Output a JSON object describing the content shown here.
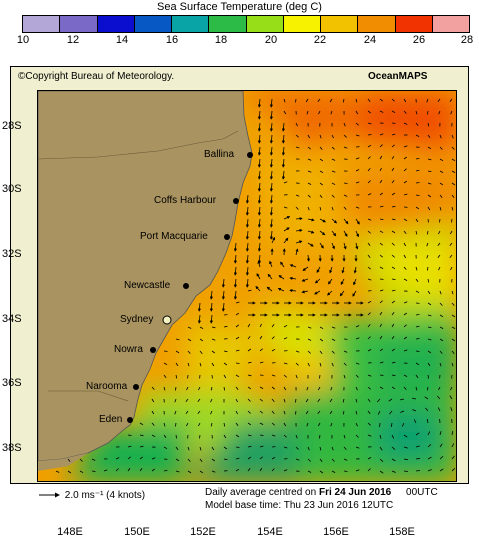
{
  "colorbar": {
    "title": "Sea Surface Temperature (deg C)",
    "ticks": [
      "10",
      "12",
      "14",
      "16",
      "18",
      "20",
      "22",
      "24",
      "26",
      "28"
    ],
    "colors": [
      "#b3a7d8",
      "#7a69c6",
      "#0b0ecf",
      "#0757c4",
      "#08a4a6",
      "#2dbb47",
      "#97de18",
      "#f7f200",
      "#f2c200",
      "#f08d00",
      "#f03300",
      "#f2a0a0"
    ]
  },
  "header": {
    "copyright": "©Copyright Bureau of Meteorology.",
    "brand": "OceanMAPS"
  },
  "axes": {
    "lat_labels": [
      "28S",
      "30S",
      "32S",
      "34S",
      "36S",
      "38S"
    ],
    "lon_labels": [
      "148E",
      "150E",
      "152E",
      "154E",
      "156E",
      "158E"
    ]
  },
  "places": [
    {
      "name": "Ballina"
    },
    {
      "name": "Coffs Harbour"
    },
    {
      "name": "Port Macquarie"
    },
    {
      "name": "Newcastle"
    },
    {
      "name": "Sydney"
    },
    {
      "name": "Nowra"
    },
    {
      "name": "Narooma"
    },
    {
      "name": "Eden"
    }
  ],
  "footer": {
    "arrow_label": "2.0 ms⁻¹ (4 knots)",
    "daily_prefix": "Daily average centred on",
    "daily_date": "Fri 24 Jun 2016",
    "daily_time": "00UTC",
    "base_time": "Model base time: Thu 23 Jun 2016 12UTC"
  },
  "colors": {
    "land": "#a99360",
    "warm": "#f0a000",
    "hot": "#f06000",
    "mid": "#e6c000",
    "green": "#30bf40",
    "cool": "#0a40d0"
  }
}
